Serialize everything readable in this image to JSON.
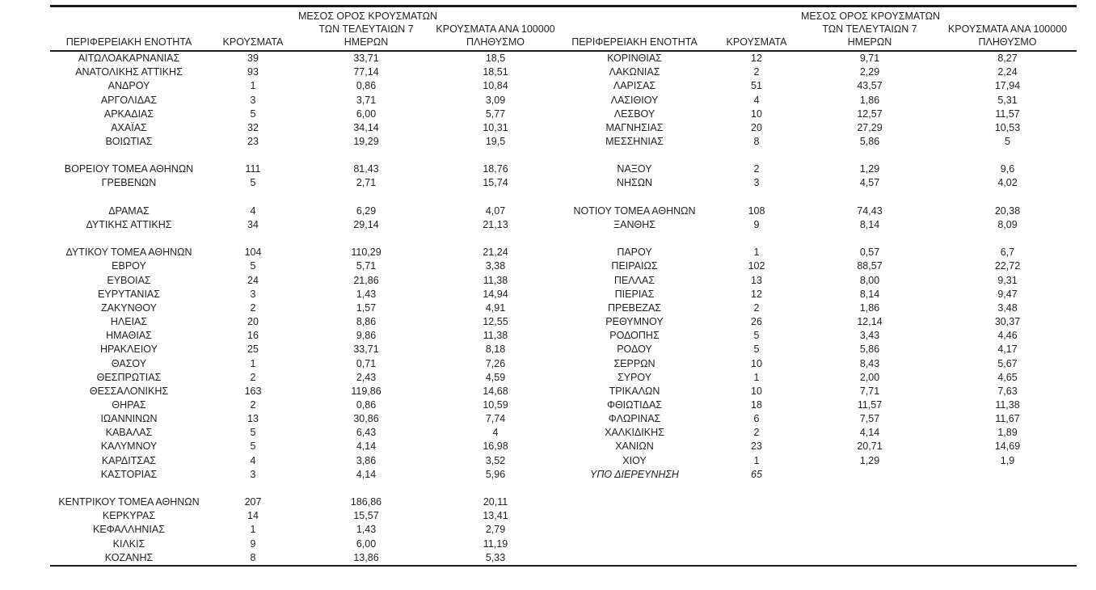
{
  "colors": {
    "background": "#ffffff",
    "text": "#1f1f1f",
    "rule": "#1a1a1a"
  },
  "table": {
    "headers": {
      "region": "ΠΕΡΙΦΕΡΕΙΑΚΗ ΕΝΟΤΗΤΑ",
      "cases": "ΚΡΟΥΣΜΑΤΑ",
      "avg7_lines": [
        "ΜΕΣΟΣ ΟΡΟΣ ΚΡΟΥΣΜΑΤΩΝ",
        "ΤΩΝ ΤΕΛΕΥΤΑΙΩΝ 7",
        "ΗΜΕΡΩΝ"
      ],
      "per100k_lines": [
        "ΚΡΟΥΣΜΑΤΑ ΑΝΑ 100000",
        "ΠΛΗΘΥΣΜΟ"
      ]
    },
    "left_rows": [
      {
        "region": "ΑΙΤΩΛΟΑΚΑΡΝΑΝΙΑΣ",
        "cases": "39",
        "avg7": "33,71",
        "per100k": "18,5"
      },
      {
        "region": "ΑΝΑΤΟΛΙΚΗΣ ΑΤΤΙΚΗΣ",
        "cases": "93",
        "avg7": "77,14",
        "per100k": "18,51"
      },
      {
        "region": "ΑΝΔΡΟΥ",
        "cases": "1",
        "avg7": "0,86",
        "per100k": "10,84"
      },
      {
        "region": "ΑΡΓΟΛΙΔΑΣ",
        "cases": "3",
        "avg7": "3,71",
        "per100k": "3,09"
      },
      {
        "region": "ΑΡΚΑΔΙΑΣ",
        "cases": "5",
        "avg7": "6,00",
        "per100k": "5,77"
      },
      {
        "region": "ΑΧΑΪΑΣ",
        "cases": "32",
        "avg7": "34,14",
        "per100k": "10,31"
      },
      {
        "region": "ΒΟΙΩΤΙΑΣ",
        "cases": "23",
        "avg7": "19,29",
        "per100k": "19,5"
      },
      null,
      {
        "region": "ΒΟΡΕΙΟΥ ΤΟΜΕΑ ΑΘΗΝΩΝ",
        "cases": "111",
        "avg7": "81,43",
        "per100k": "18,76"
      },
      {
        "region": "ΓΡΕΒΕΝΩΝ",
        "cases": "5",
        "avg7": "2,71",
        "per100k": "15,74"
      },
      null,
      {
        "region": "ΔΡΑΜΑΣ",
        "cases": "4",
        "avg7": "6,29",
        "per100k": "4,07"
      },
      {
        "region": "ΔΥΤΙΚΗΣ ΑΤΤΙΚΗΣ",
        "cases": "34",
        "avg7": "29,14",
        "per100k": "21,13"
      },
      null,
      {
        "region": "ΔΥΤΙΚΟΥ ΤΟΜΕΑ ΑΘΗΝΩΝ",
        "cases": "104",
        "avg7": "110,29",
        "per100k": "21,24"
      },
      {
        "region": "ΕΒΡΟΥ",
        "cases": "5",
        "avg7": "5,71",
        "per100k": "3,38"
      },
      {
        "region": "ΕΥΒΟΙΑΣ",
        "cases": "24",
        "avg7": "21,86",
        "per100k": "11,38"
      },
      {
        "region": "ΕΥΡΥΤΑΝΙΑΣ",
        "cases": "3",
        "avg7": "1,43",
        "per100k": "14,94"
      },
      {
        "region": "ΖΑΚΥΝΘΟΥ",
        "cases": "2",
        "avg7": "1,57",
        "per100k": "4,91"
      },
      {
        "region": "ΗΛΕΙΑΣ",
        "cases": "20",
        "avg7": "8,86",
        "per100k": "12,55"
      },
      {
        "region": "ΗΜΑΘΙΑΣ",
        "cases": "16",
        "avg7": "9,86",
        "per100k": "11,38"
      },
      {
        "region": "ΗΡΑΚΛΕΙΟΥ",
        "cases": "25",
        "avg7": "33,71",
        "per100k": "8,18"
      },
      {
        "region": "ΘΑΣΟΥ",
        "cases": "1",
        "avg7": "0,71",
        "per100k": "7,26"
      },
      {
        "region": "ΘΕΣΠΡΩΤΙΑΣ",
        "cases": "2",
        "avg7": "2,43",
        "per100k": "4,59"
      },
      {
        "region": "ΘΕΣΣΑΛΟΝΙΚΗΣ",
        "cases": "163",
        "avg7": "119,86",
        "per100k": "14,68"
      },
      {
        "region": "ΘΗΡΑΣ",
        "cases": "2",
        "avg7": "0,86",
        "per100k": "10,59"
      },
      {
        "region": "ΙΩΑΝΝΙΝΩΝ",
        "cases": "13",
        "avg7": "30,86",
        "per100k": "7,74"
      },
      {
        "region": "ΚΑΒΑΛΑΣ",
        "cases": "5",
        "avg7": "6,43",
        "per100k": "4"
      },
      {
        "region": "ΚΑΛΥΜΝΟΥ",
        "cases": "5",
        "avg7": "4,14",
        "per100k": "16,98"
      },
      {
        "region": "ΚΑΡΔΙΤΣΑΣ",
        "cases": "4",
        "avg7": "3,86",
        "per100k": "3,52"
      },
      {
        "region": "ΚΑΣΤΟΡΙΑΣ",
        "cases": "3",
        "avg7": "4,14",
        "per100k": "5,96"
      },
      null,
      {
        "region": "ΚΕΝΤΡΙΚΟΥ ΤΟΜΕΑ ΑΘΗΝΩΝ",
        "cases": "207",
        "avg7": "186,86",
        "per100k": "20,11"
      },
      {
        "region": "ΚΕΡΚΥΡΑΣ",
        "cases": "14",
        "avg7": "15,57",
        "per100k": "13,41"
      },
      {
        "region": "ΚΕΦΑΛΛΗΝΙΑΣ",
        "cases": "1",
        "avg7": "1,43",
        "per100k": "2,79"
      },
      {
        "region": "ΚΙΛΚΙΣ",
        "cases": "9",
        "avg7": "6,00",
        "per100k": "11,19"
      },
      {
        "region": "ΚΟΖΑΝΗΣ",
        "cases": "8",
        "avg7": "13,86",
        "per100k": "5,33"
      }
    ],
    "right_rows": [
      {
        "region": "ΚΟΡΙΝΘΙΑΣ",
        "cases": "12",
        "avg7": "9,71",
        "per100k": "8,27"
      },
      {
        "region": "ΛΑΚΩΝΙΑΣ",
        "cases": "2",
        "avg7": "2,29",
        "per100k": "2,24"
      },
      {
        "region": "ΛΑΡΙΣΑΣ",
        "cases": "51",
        "avg7": "43,57",
        "per100k": "17,94"
      },
      {
        "region": "ΛΑΣΙΘΙΟΥ",
        "cases": "4",
        "avg7": "1,86",
        "per100k": "5,31"
      },
      {
        "region": "ΛΕΣΒΟΥ",
        "cases": "10",
        "avg7": "12,57",
        "per100k": "11,57"
      },
      {
        "region": "ΜΑΓΝΗΣΙΑΣ",
        "cases": "20",
        "avg7": "27,29",
        "per100k": "10,53"
      },
      {
        "region": "ΜΕΣΣΗΝΙΑΣ",
        "cases": "8",
        "avg7": "5,86",
        "per100k": "5"
      },
      null,
      {
        "region": "ΝΑΞΟΥ",
        "cases": "2",
        "avg7": "1,29",
        "per100k": "9,6"
      },
      {
        "region": "ΝΗΣΩΝ",
        "cases": "3",
        "avg7": "4,57",
        "per100k": "4,02"
      },
      null,
      {
        "region": "ΝΟΤΙΟΥ ΤΟΜΕΑ ΑΘΗΝΩΝ",
        "cases": "108",
        "avg7": "74,43",
        "per100k": "20,38"
      },
      {
        "region": "ΞΑΝΘΗΣ",
        "cases": "9",
        "avg7": "8,14",
        "per100k": "8,09"
      },
      null,
      {
        "region": "ΠΑΡΟΥ",
        "cases": "1",
        "avg7": "0,57",
        "per100k": "6,7"
      },
      {
        "region": "ΠΕΙΡΑΙΩΣ",
        "cases": "102",
        "avg7": "88,57",
        "per100k": "22,72"
      },
      {
        "region": "ΠΕΛΛΑΣ",
        "cases": "13",
        "avg7": "8,00",
        "per100k": "9,31"
      },
      {
        "region": "ΠΙΕΡΙΑΣ",
        "cases": "12",
        "avg7": "8,14",
        "per100k": "9,47"
      },
      {
        "region": "ΠΡΕΒΕΖΑΣ",
        "cases": "2",
        "avg7": "1,86",
        "per100k": "3,48"
      },
      {
        "region": "ΡΕΘΥΜΝΟΥ",
        "cases": "26",
        "avg7": "12,14",
        "per100k": "30,37"
      },
      {
        "region": "ΡΟΔΟΠΗΣ",
        "cases": "5",
        "avg7": "3,43",
        "per100k": "4,46"
      },
      {
        "region": "ΡΟΔΟΥ",
        "cases": "5",
        "avg7": "5,86",
        "per100k": "4,17"
      },
      {
        "region": "ΣΕΡΡΩΝ",
        "cases": "10",
        "avg7": "8,43",
        "per100k": "5,67"
      },
      {
        "region": "ΣΥΡΟΥ",
        "cases": "1",
        "avg7": "2,00",
        "per100k": "4,65"
      },
      {
        "region": "ΤΡΙΚΑΛΩΝ",
        "cases": "10",
        "avg7": "7,71",
        "per100k": "7,63"
      },
      {
        "region": "ΦΘΙΩΤΙΔΑΣ",
        "cases": "18",
        "avg7": "11,57",
        "per100k": "11,38"
      },
      {
        "region": "ΦΛΩΡΙΝΑΣ",
        "cases": "6",
        "avg7": "7,57",
        "per100k": "11,67"
      },
      {
        "region": "ΧΑΛΚΙΔΙΚΗΣ",
        "cases": "2",
        "avg7": "4,14",
        "per100k": "1,89"
      },
      {
        "region": "ΧΑΝΙΩΝ",
        "cases": "23",
        "avg7": "20,71",
        "per100k": "14,69"
      },
      {
        "region": "ΧΙΟΥ",
        "cases": "1",
        "avg7": "1,29",
        "per100k": "1,9"
      },
      {
        "region": "ΥΠΟ ΔΙΕΡΕΥΝΗΣΗ",
        "cases": "65",
        "avg7": "",
        "per100k": "",
        "italic": true
      }
    ]
  }
}
